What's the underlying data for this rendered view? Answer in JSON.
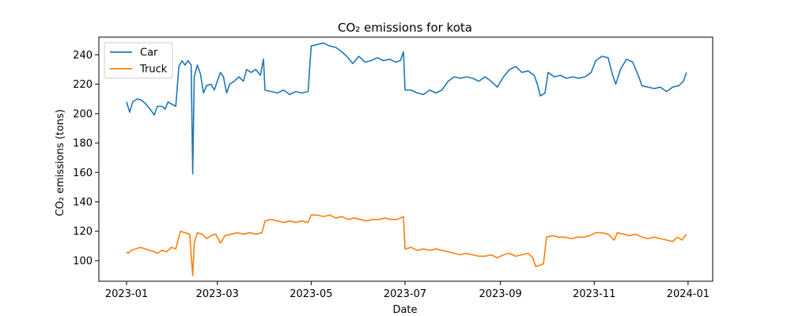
{
  "chart_data": {
    "type": "line",
    "title": "CO₂ emissions for kota",
    "xlabel": "Date",
    "ylabel": "CO₂ emissions (tons)",
    "xlim": [
      "2022-12-14",
      "2024-01-17"
    ],
    "ylim": [
      86,
      252
    ],
    "x_ticks": [
      {
        "date": "2023-01-01",
        "label": "2023-01"
      },
      {
        "date": "2023-03-01",
        "label": "2023-03"
      },
      {
        "date": "2023-05-01",
        "label": "2023-05"
      },
      {
        "date": "2023-07-01",
        "label": "2023-07"
      },
      {
        "date": "2023-09-01",
        "label": "2023-09"
      },
      {
        "date": "2023-11-01",
        "label": "2023-11"
      },
      {
        "date": "2024-01-01",
        "label": "2024-01"
      }
    ],
    "y_ticks": [
      100,
      120,
      140,
      160,
      180,
      200,
      220,
      240
    ],
    "legend_position": "top-left",
    "series": [
      {
        "name": "Car",
        "color": "#1f77b4",
        "points": [
          [
            "2023-01-01",
            208
          ],
          [
            "2023-01-03",
            201
          ],
          [
            "2023-01-05",
            208
          ],
          [
            "2023-01-08",
            210
          ],
          [
            "2023-01-11",
            209
          ],
          [
            "2023-01-14",
            206
          ],
          [
            "2023-01-17",
            202
          ],
          [
            "2023-01-19",
            199
          ],
          [
            "2023-01-21",
            205
          ],
          [
            "2023-01-24",
            205
          ],
          [
            "2023-01-26",
            203
          ],
          [
            "2023-01-28",
            208
          ],
          [
            "2023-01-31",
            206
          ],
          [
            "2023-02-02",
            205
          ],
          [
            "2023-02-04",
            232
          ],
          [
            "2023-02-06",
            236
          ],
          [
            "2023-02-08",
            233
          ],
          [
            "2023-02-10",
            236
          ],
          [
            "2023-02-12",
            233
          ],
          [
            "2023-02-13",
            159
          ],
          [
            "2023-02-14",
            225
          ],
          [
            "2023-02-16",
            233
          ],
          [
            "2023-02-18",
            227
          ],
          [
            "2023-02-20",
            214
          ],
          [
            "2023-02-22",
            219
          ],
          [
            "2023-02-25",
            220
          ],
          [
            "2023-02-27",
            216
          ],
          [
            "2023-03-01",
            222
          ],
          [
            "2023-03-03",
            228
          ],
          [
            "2023-03-05",
            225
          ],
          [
            "2023-03-07",
            214
          ],
          [
            "2023-03-09",
            220
          ],
          [
            "2023-03-12",
            222
          ],
          [
            "2023-03-15",
            225
          ],
          [
            "2023-03-18",
            222
          ],
          [
            "2023-03-20",
            230
          ],
          [
            "2023-03-23",
            228
          ],
          [
            "2023-03-26",
            230
          ],
          [
            "2023-03-29",
            226
          ],
          [
            "2023-03-31",
            237
          ],
          [
            "2023-04-01",
            216
          ],
          [
            "2023-04-05",
            215
          ],
          [
            "2023-04-09",
            214
          ],
          [
            "2023-04-13",
            216
          ],
          [
            "2023-04-17",
            213
          ],
          [
            "2023-04-21",
            215
          ],
          [
            "2023-04-25",
            214
          ],
          [
            "2023-04-29",
            215
          ],
          [
            "2023-05-01",
            246
          ],
          [
            "2023-05-05",
            247
          ],
          [
            "2023-05-09",
            248
          ],
          [
            "2023-05-13",
            246
          ],
          [
            "2023-05-17",
            245
          ],
          [
            "2023-05-21",
            242
          ],
          [
            "2023-05-25",
            238
          ],
          [
            "2023-05-28",
            234
          ],
          [
            "2023-06-01",
            239
          ],
          [
            "2023-06-05",
            235
          ],
          [
            "2023-06-09",
            236
          ],
          [
            "2023-06-13",
            238
          ],
          [
            "2023-06-17",
            236
          ],
          [
            "2023-06-21",
            237
          ],
          [
            "2023-06-25",
            235
          ],
          [
            "2023-06-28",
            236
          ],
          [
            "2023-06-30",
            242
          ],
          [
            "2023-07-01",
            216
          ],
          [
            "2023-07-05",
            216
          ],
          [
            "2023-07-09",
            214
          ],
          [
            "2023-07-13",
            213
          ],
          [
            "2023-07-17",
            216
          ],
          [
            "2023-07-21",
            214
          ],
          [
            "2023-07-25",
            216
          ],
          [
            "2023-07-29",
            222
          ],
          [
            "2023-08-02",
            225
          ],
          [
            "2023-08-06",
            224
          ],
          [
            "2023-08-10",
            225
          ],
          [
            "2023-08-14",
            224
          ],
          [
            "2023-08-18",
            222
          ],
          [
            "2023-08-22",
            225
          ],
          [
            "2023-08-26",
            222
          ],
          [
            "2023-08-30",
            218
          ],
          [
            "2023-09-03",
            225
          ],
          [
            "2023-09-07",
            230
          ],
          [
            "2023-09-11",
            232
          ],
          [
            "2023-09-15",
            228
          ],
          [
            "2023-09-19",
            229
          ],
          [
            "2023-09-23",
            226
          ],
          [
            "2023-09-25",
            220
          ],
          [
            "2023-09-27",
            212
          ],
          [
            "2023-09-30",
            214
          ],
          [
            "2023-10-02",
            228
          ],
          [
            "2023-10-06",
            225
          ],
          [
            "2023-10-10",
            226
          ],
          [
            "2023-10-14",
            224
          ],
          [
            "2023-10-18",
            225
          ],
          [
            "2023-10-22",
            224
          ],
          [
            "2023-10-26",
            225
          ],
          [
            "2023-10-30",
            228
          ],
          [
            "2023-11-02",
            236
          ],
          [
            "2023-11-06",
            239
          ],
          [
            "2023-11-10",
            238
          ],
          [
            "2023-11-13",
            226
          ],
          [
            "2023-11-15",
            220
          ],
          [
            "2023-11-18",
            230
          ],
          [
            "2023-11-22",
            237
          ],
          [
            "2023-11-26",
            235
          ],
          [
            "2023-11-30",
            225
          ],
          [
            "2023-12-02",
            219
          ],
          [
            "2023-12-06",
            218
          ],
          [
            "2023-12-10",
            217
          ],
          [
            "2023-12-14",
            218
          ],
          [
            "2023-12-18",
            215
          ],
          [
            "2023-12-22",
            218
          ],
          [
            "2023-12-26",
            219
          ],
          [
            "2023-12-29",
            222
          ],
          [
            "2023-12-31",
            228
          ]
        ]
      },
      {
        "name": "Truck",
        "color": "#ff7f0e",
        "points": [
          [
            "2023-01-01",
            106
          ],
          [
            "2023-01-02",
            105
          ],
          [
            "2023-01-04",
            107
          ],
          [
            "2023-01-07",
            108
          ],
          [
            "2023-01-10",
            109
          ],
          [
            "2023-01-13",
            108
          ],
          [
            "2023-01-16",
            107
          ],
          [
            "2023-01-19",
            106
          ],
          [
            "2023-01-21",
            105
          ],
          [
            "2023-01-24",
            107
          ],
          [
            "2023-01-27",
            106
          ],
          [
            "2023-01-30",
            109
          ],
          [
            "2023-02-02",
            108
          ],
          [
            "2023-02-04",
            116
          ],
          [
            "2023-02-05",
            120
          ],
          [
            "2023-02-08",
            119
          ],
          [
            "2023-02-11",
            118
          ],
          [
            "2023-02-13",
            90
          ],
          [
            "2023-02-14",
            112
          ],
          [
            "2023-02-16",
            119
          ],
          [
            "2023-02-19",
            118
          ],
          [
            "2023-02-22",
            115
          ],
          [
            "2023-02-25",
            117
          ],
          [
            "2023-02-28",
            118
          ],
          [
            "2023-03-03",
            112
          ],
          [
            "2023-03-06",
            117
          ],
          [
            "2023-03-10",
            118
          ],
          [
            "2023-03-14",
            119
          ],
          [
            "2023-03-18",
            118
          ],
          [
            "2023-03-22",
            119
          ],
          [
            "2023-03-26",
            118
          ],
          [
            "2023-03-30",
            119
          ],
          [
            "2023-04-01",
            127
          ],
          [
            "2023-04-05",
            128
          ],
          [
            "2023-04-09",
            127
          ],
          [
            "2023-04-13",
            126
          ],
          [
            "2023-04-17",
            127
          ],
          [
            "2023-04-21",
            126
          ],
          [
            "2023-04-25",
            127
          ],
          [
            "2023-04-29",
            126
          ],
          [
            "2023-05-01",
            131
          ],
          [
            "2023-05-05",
            131
          ],
          [
            "2023-05-09",
            130
          ],
          [
            "2023-05-13",
            131
          ],
          [
            "2023-05-17",
            129
          ],
          [
            "2023-05-21",
            130
          ],
          [
            "2023-05-25",
            128
          ],
          [
            "2023-05-29",
            129
          ],
          [
            "2023-06-02",
            128
          ],
          [
            "2023-06-06",
            127
          ],
          [
            "2023-06-10",
            128
          ],
          [
            "2023-06-14",
            128
          ],
          [
            "2023-06-18",
            129
          ],
          [
            "2023-06-22",
            128
          ],
          [
            "2023-06-26",
            128
          ],
          [
            "2023-06-30",
            130
          ],
          [
            "2023-07-01",
            108
          ],
          [
            "2023-07-05",
            109
          ],
          [
            "2023-07-09",
            107
          ],
          [
            "2023-07-13",
            108
          ],
          [
            "2023-07-17",
            107
          ],
          [
            "2023-07-21",
            108
          ],
          [
            "2023-07-25",
            107
          ],
          [
            "2023-07-29",
            106
          ],
          [
            "2023-08-02",
            105
          ],
          [
            "2023-08-06",
            104
          ],
          [
            "2023-08-10",
            105
          ],
          [
            "2023-08-14",
            104
          ],
          [
            "2023-08-18",
            103
          ],
          [
            "2023-08-22",
            103
          ],
          [
            "2023-08-26",
            104
          ],
          [
            "2023-08-30",
            102
          ],
          [
            "2023-09-03",
            104
          ],
          [
            "2023-09-07",
            105
          ],
          [
            "2023-09-11",
            103
          ],
          [
            "2023-09-15",
            104
          ],
          [
            "2023-09-19",
            105
          ],
          [
            "2023-09-22",
            102
          ],
          [
            "2023-09-24",
            96
          ],
          [
            "2023-09-27",
            97
          ],
          [
            "2023-09-29",
            98
          ],
          [
            "2023-10-01",
            116
          ],
          [
            "2023-10-05",
            117
          ],
          [
            "2023-10-09",
            116
          ],
          [
            "2023-10-13",
            116
          ],
          [
            "2023-10-17",
            115
          ],
          [
            "2023-10-21",
            116
          ],
          [
            "2023-10-25",
            116
          ],
          [
            "2023-10-29",
            117
          ],
          [
            "2023-11-02",
            119
          ],
          [
            "2023-11-06",
            119
          ],
          [
            "2023-11-10",
            118
          ],
          [
            "2023-11-14",
            114
          ],
          [
            "2023-11-16",
            119
          ],
          [
            "2023-11-20",
            118
          ],
          [
            "2023-11-24",
            117
          ],
          [
            "2023-11-28",
            118
          ],
          [
            "2023-12-02",
            116
          ],
          [
            "2023-12-06",
            115
          ],
          [
            "2023-12-10",
            116
          ],
          [
            "2023-12-14",
            115
          ],
          [
            "2023-12-18",
            114
          ],
          [
            "2023-12-22",
            113
          ],
          [
            "2023-12-25",
            116
          ],
          [
            "2023-12-28",
            114
          ],
          [
            "2023-12-31",
            118
          ]
        ]
      }
    ]
  }
}
